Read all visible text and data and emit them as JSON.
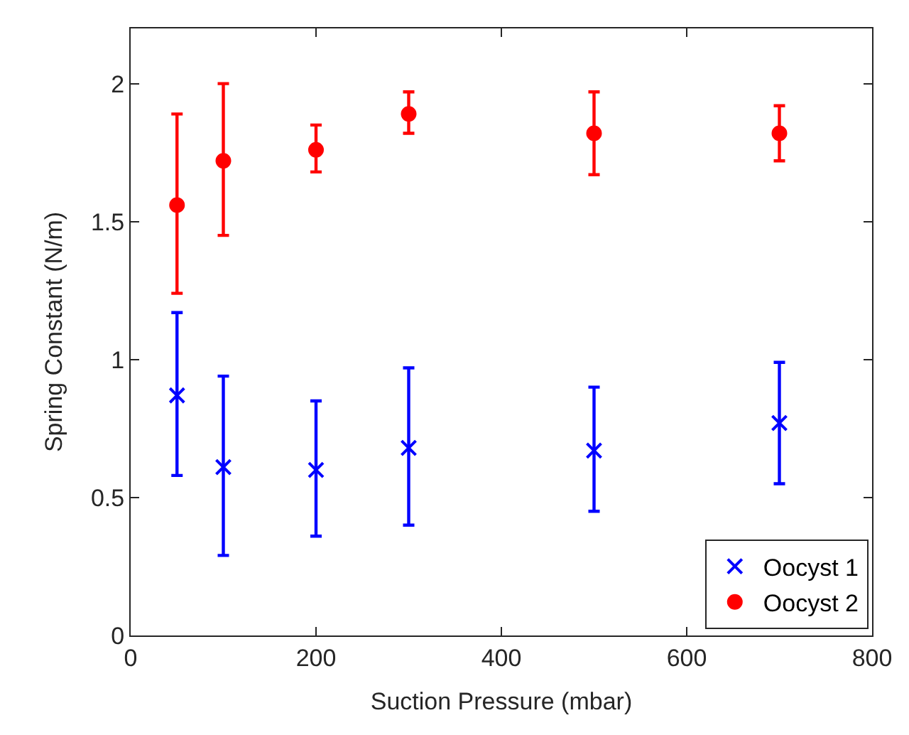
{
  "chart_data": {
    "type": "scatter",
    "xlabel": "Suction Pressure (mbar)",
    "ylabel": "Spring Constant (N/m)",
    "x": [
      50,
      100,
      200,
      300,
      500,
      700
    ],
    "series": [
      {
        "name": "Oocyst 1",
        "color": "#0000ff",
        "marker": "cross",
        "values": [
          0.87,
          0.61,
          0.6,
          0.68,
          0.67,
          0.77
        ],
        "errors": [
          [
            0.58,
            1.17
          ],
          [
            0.29,
            0.94
          ],
          [
            0.36,
            0.85
          ],
          [
            0.4,
            0.97
          ],
          [
            0.45,
            0.9
          ],
          [
            0.55,
            0.99
          ]
        ]
      },
      {
        "name": "Oocyst 2",
        "color": "#ff0000",
        "marker": "circle",
        "values": [
          1.56,
          1.72,
          1.76,
          1.89,
          1.82,
          1.82
        ],
        "errors": [
          [
            1.24,
            1.89
          ],
          [
            1.45,
            2.0
          ],
          [
            1.68,
            1.85
          ],
          [
            1.82,
            1.97
          ],
          [
            1.67,
            1.97
          ],
          [
            1.72,
            1.92
          ]
        ]
      }
    ],
    "xlim": [
      0,
      800
    ],
    "xticks": [
      0,
      200,
      400,
      600,
      800
    ],
    "ylim": [
      0,
      2.2
    ],
    "yticks": [
      0,
      0.5,
      1,
      1.5,
      2
    ],
    "legend": "bottom right"
  }
}
